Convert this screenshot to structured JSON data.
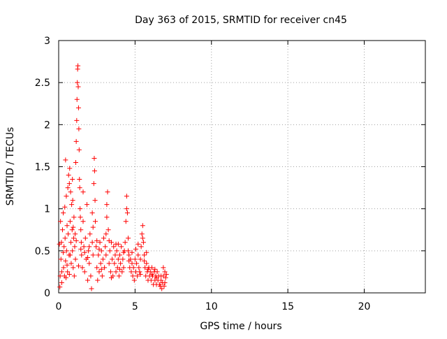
{
  "chart_data": {
    "type": "scatter",
    "title": "Day 363 of 2015, SRMTID for receiver cn45",
    "xlabel": "GPS time / hours",
    "ylabel": "SRMTID / TECUs",
    "xlim": [
      0,
      24
    ],
    "ylim": [
      0,
      3
    ],
    "x_ticks": [
      0,
      5,
      10,
      15,
      20
    ],
    "x_tick_labels": [
      "0",
      "5",
      "10",
      "15",
      "20"
    ],
    "y_ticks": [
      0,
      0.5,
      1,
      1.5,
      2,
      2.5,
      3
    ],
    "y_tick_labels": [
      "0",
      "0.5",
      "1",
      "1.5",
      "2",
      "2.5",
      "3"
    ],
    "grid": true,
    "marker": "+",
    "series": [
      {
        "name": "SRMTID",
        "color": "#ff0000",
        "points": [
          [
            0.05,
            0.58
          ],
          [
            0.08,
            0.07
          ],
          [
            0.12,
            0.85
          ],
          [
            0.15,
            0.4
          ],
          [
            0.18,
            0.6
          ],
          [
            0.2,
            0.25
          ],
          [
            0.25,
            0.75
          ],
          [
            0.3,
            0.95
          ],
          [
            0.32,
            0.3
          ],
          [
            0.35,
            0.55
          ],
          [
            0.38,
            0.2
          ],
          [
            0.4,
            1.02
          ],
          [
            0.42,
            0.65
          ],
          [
            0.45,
            0.38
          ],
          [
            0.48,
            0.18
          ],
          [
            0.5,
            1.15
          ],
          [
            0.52,
            0.5
          ],
          [
            0.55,
            0.8
          ],
          [
            0.58,
            0.25
          ],
          [
            0.6,
            1.25
          ],
          [
            0.62,
            0.7
          ],
          [
            0.65,
            1.4
          ],
          [
            0.68,
            0.45
          ],
          [
            0.7,
            1.3
          ],
          [
            0.72,
            1.48
          ],
          [
            0.75,
            0.85
          ],
          [
            0.78,
            1.2
          ],
          [
            0.8,
            0.6
          ],
          [
            0.82,
            0.35
          ],
          [
            0.85,
            1.05
          ],
          [
            0.88,
            0.75
          ],
          [
            0.9,
            0.5
          ],
          [
            0.92,
            1.1
          ],
          [
            0.95,
            0.3
          ],
          [
            0.98,
            0.65
          ],
          [
            1.0,
            0.9
          ],
          [
            1.02,
            0.2
          ],
          [
            1.05,
            0.55
          ],
          [
            1.08,
            0.7
          ],
          [
            1.1,
            0.4
          ],
          [
            1.12,
            1.55
          ],
          [
            1.15,
            1.8
          ],
          [
            1.18,
            2.05
          ],
          [
            1.2,
            2.3
          ],
          [
            1.22,
            2.5
          ],
          [
            1.24,
            2.66
          ],
          [
            1.26,
            2.7
          ],
          [
            1.28,
            2.45
          ],
          [
            1.3,
            2.2
          ],
          [
            1.32,
            1.95
          ],
          [
            1.34,
            1.7
          ],
          [
            1.36,
            1.35
          ],
          [
            1.38,
            1.25
          ],
          [
            1.4,
            1.0
          ],
          [
            1.42,
            0.9
          ],
          [
            1.45,
            0.75
          ],
          [
            1.48,
            0.6
          ],
          [
            1.5,
            0.45
          ],
          [
            1.55,
            0.3
          ],
          [
            1.6,
            0.85
          ],
          [
            1.65,
            0.55
          ],
          [
            1.7,
            0.25
          ],
          [
            1.75,
            0.65
          ],
          [
            1.8,
            0.4
          ],
          [
            1.85,
            1.05
          ],
          [
            1.9,
            0.15
          ],
          [
            1.95,
            0.5
          ],
          [
            2.0,
            0.35
          ],
          [
            2.05,
            0.7
          ],
          [
            2.1,
            0.2
          ],
          [
            2.15,
            0.05
          ],
          [
            2.2,
            0.6
          ],
          [
            2.25,
            0.45
          ],
          [
            2.3,
            1.3
          ],
          [
            2.33,
            1.6
          ],
          [
            2.35,
            1.45
          ],
          [
            2.38,
            1.1
          ],
          [
            2.4,
            0.85
          ],
          [
            2.45,
            0.55
          ],
          [
            2.5,
            0.3
          ],
          [
            2.55,
            0.15
          ],
          [
            2.6,
            0.45
          ],
          [
            2.65,
            0.25
          ],
          [
            2.7,
            0.6
          ],
          [
            2.75,
            0.35
          ],
          [
            2.8,
            0.5
          ],
          [
            2.85,
            0.2
          ],
          [
            2.9,
            0.4
          ],
          [
            2.95,
            0.65
          ],
          [
            3.0,
            0.3
          ],
          [
            3.05,
            0.55
          ],
          [
            3.1,
            0.45
          ],
          [
            3.15,
            0.9
          ],
          [
            3.2,
            1.2
          ],
          [
            3.25,
            0.75
          ],
          [
            3.3,
            0.35
          ],
          [
            3.35,
            0.5
          ],
          [
            3.4,
            0.25
          ],
          [
            3.45,
            0.6
          ],
          [
            3.5,
            0.4
          ],
          [
            3.55,
            0.2
          ],
          [
            3.6,
            0.55
          ],
          [
            3.65,
            0.35
          ],
          [
            3.7,
            0.45
          ],
          [
            3.75,
            0.25
          ],
          [
            3.8,
            0.5
          ],
          [
            3.85,
            0.3
          ],
          [
            3.9,
            0.4
          ],
          [
            3.95,
            0.2
          ],
          [
            4.0,
            0.45
          ],
          [
            4.05,
            0.35
          ],
          [
            4.1,
            0.55
          ],
          [
            4.15,
            0.25
          ],
          [
            4.2,
            0.4
          ],
          [
            4.25,
            0.3
          ],
          [
            4.3,
            0.5
          ],
          [
            4.35,
            0.6
          ],
          [
            4.4,
            0.85
          ],
          [
            4.45,
            1.15
          ],
          [
            4.5,
            0.95
          ],
          [
            4.55,
            0.65
          ],
          [
            4.6,
            0.45
          ],
          [
            4.65,
            0.3
          ],
          [
            4.7,
            0.4
          ],
          [
            4.75,
            0.25
          ],
          [
            4.8,
            0.35
          ],
          [
            4.85,
            0.2
          ],
          [
            4.9,
            0.3
          ],
          [
            4.95,
            0.15
          ],
          [
            5.0,
            0.4
          ],
          [
            5.05,
            0.25
          ],
          [
            5.1,
            0.35
          ],
          [
            5.15,
            0.2
          ],
          [
            5.2,
            0.45
          ],
          [
            5.25,
            0.3
          ],
          [
            5.3,
            0.25
          ],
          [
            5.35,
            0.4
          ],
          [
            5.4,
            0.55
          ],
          [
            5.45,
            0.7
          ],
          [
            5.5,
            0.8
          ],
          [
            5.55,
            0.6
          ],
          [
            5.6,
            0.45
          ],
          [
            5.65,
            0.3
          ],
          [
            5.7,
            0.2
          ],
          [
            5.75,
            0.35
          ],
          [
            5.8,
            0.25
          ],
          [
            5.85,
            0.15
          ],
          [
            5.9,
            0.3
          ],
          [
            5.95,
            0.2
          ],
          [
            6.0,
            0.25
          ],
          [
            6.05,
            0.15
          ],
          [
            6.1,
            0.3
          ],
          [
            6.15,
            0.2
          ],
          [
            6.2,
            0.1
          ],
          [
            6.25,
            0.25
          ],
          [
            6.3,
            0.15
          ],
          [
            6.35,
            0.2
          ],
          [
            6.4,
            0.1
          ],
          [
            6.45,
            0.25
          ],
          [
            6.5,
            0.15
          ],
          [
            6.55,
            0.2
          ],
          [
            6.6,
            0.1
          ],
          [
            6.65,
            0.08
          ],
          [
            6.7,
            0.15
          ],
          [
            6.75,
            0.05
          ],
          [
            6.8,
            0.12
          ],
          [
            6.85,
            0.2
          ],
          [
            6.9,
            0.08
          ],
          [
            6.95,
            0.25
          ],
          [
            7.0,
            0.18
          ],
          [
            7.05,
            0.22
          ],
          [
            0.1,
            0.2
          ],
          [
            0.3,
            0.48
          ],
          [
            0.55,
            0.33
          ],
          [
            0.75,
            0.45
          ],
          [
            0.95,
            0.78
          ],
          [
            1.15,
            0.62
          ],
          [
            1.45,
            0.52
          ],
          [
            1.7,
            0.48
          ],
          [
            2.0,
            0.55
          ],
          [
            2.25,
            0.78
          ],
          [
            2.5,
            0.62
          ],
          [
            2.8,
            0.28
          ],
          [
            3.1,
            0.7
          ],
          [
            3.45,
            0.18
          ],
          [
            3.75,
            0.58
          ],
          [
            4.0,
            0.28
          ],
          [
            4.25,
            0.48
          ],
          [
            4.55,
            0.5
          ],
          [
            4.8,
            0.48
          ],
          [
            5.05,
            0.52
          ],
          [
            5.35,
            0.22
          ],
          [
            5.6,
            0.38
          ],
          [
            5.85,
            0.28
          ],
          [
            6.1,
            0.22
          ],
          [
            6.4,
            0.18
          ],
          [
            6.7,
            0.2
          ],
          [
            6.95,
            0.12
          ],
          [
            0.45,
            1.58
          ],
          [
            0.9,
            1.35
          ],
          [
            1.6,
            1.2
          ],
          [
            2.2,
            0.95
          ],
          [
            3.15,
            1.05
          ],
          [
            4.45,
            1.0
          ],
          [
            5.5,
            0.65
          ],
          [
            0.2,
            0.12
          ],
          [
            0.7,
            0.22
          ],
          [
            1.3,
            0.32
          ],
          [
            1.9,
            0.42
          ],
          [
            2.65,
            0.52
          ],
          [
            3.3,
            0.62
          ],
          [
            3.9,
            0.58
          ],
          [
            4.6,
            0.38
          ],
          [
            5.2,
            0.58
          ],
          [
            5.75,
            0.48
          ],
          [
            6.3,
            0.28
          ],
          [
            6.85,
            0.3
          ]
        ]
      }
    ]
  }
}
